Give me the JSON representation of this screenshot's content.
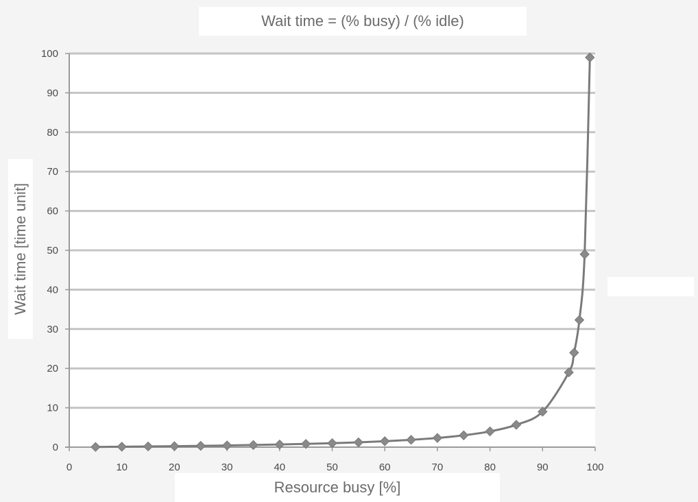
{
  "chart_data": {
    "type": "line",
    "title": "Wait time = (% busy) / (% idle)",
    "xlabel": "Resource busy [%]",
    "ylabel": "Wait time [time unit]",
    "xlim": [
      0,
      100
    ],
    "ylim": [
      0,
      100
    ],
    "xticks": [
      0,
      10,
      20,
      30,
      40,
      50,
      60,
      70,
      80,
      90,
      100
    ],
    "yticks": [
      0,
      10,
      20,
      30,
      40,
      50,
      60,
      70,
      80,
      90,
      100
    ],
    "grid": "horizontal",
    "legend": "none",
    "series": [
      {
        "x": [
          5,
          10,
          15,
          20,
          25,
          30,
          35,
          40,
          45,
          50,
          55,
          60,
          65,
          70,
          75,
          80,
          85,
          90,
          95,
          96,
          97,
          98,
          99
        ],
        "y": [
          0.05,
          0.11,
          0.18,
          0.25,
          0.33,
          0.43,
          0.54,
          0.67,
          0.82,
          1,
          1.22,
          1.5,
          1.86,
          2.33,
          3,
          4,
          5.67,
          9,
          19,
          24,
          32.3,
          49,
          99
        ],
        "color": "#7a7a7a",
        "marker": "diamond"
      }
    ]
  }
}
